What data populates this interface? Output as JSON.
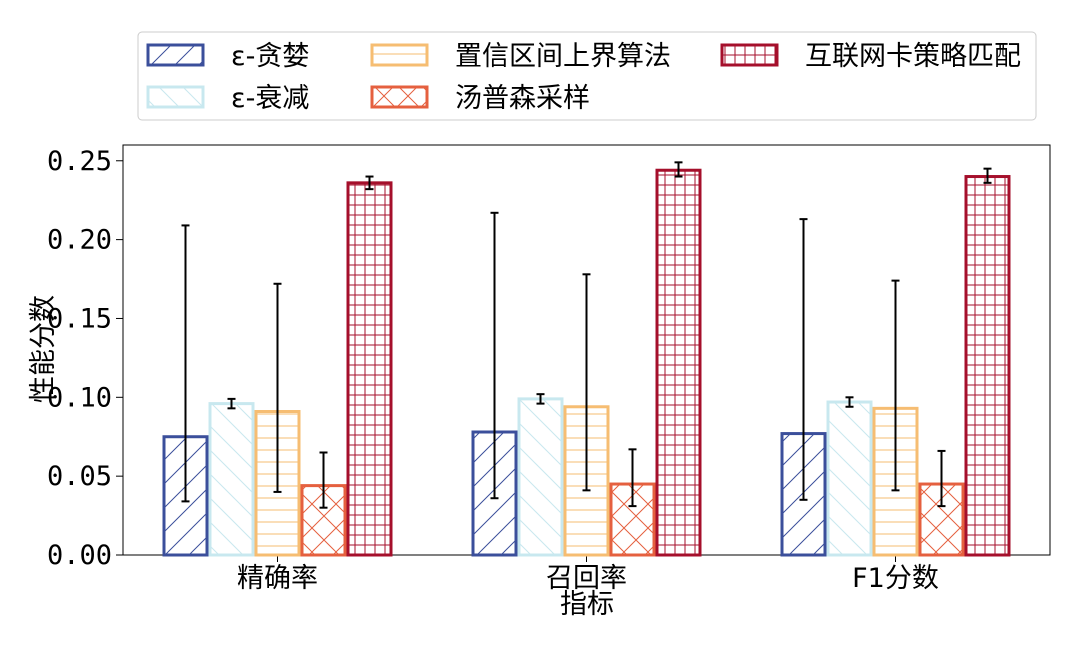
{
  "chart_data": {
    "type": "bar",
    "title": "",
    "xlabel": "指标",
    "ylabel": "性能分数",
    "categories": [
      "精确率",
      "召回率",
      "F1分数"
    ],
    "ylim": [
      0,
      0.26
    ],
    "yticks": [
      "0.00",
      "0.05",
      "0.10",
      "0.15",
      "0.20",
      "0.25"
    ],
    "grid": false,
    "legend_position": "top",
    "series": [
      {
        "name": "ε-贪婪",
        "color": "#3b4f9b",
        "hatch": "diagonal-up",
        "values": [
          0.075,
          0.078,
          0.077
        ],
        "err_low": [
          0.034,
          0.036,
          0.035
        ],
        "err_high": [
          0.209,
          0.217,
          0.213
        ]
      },
      {
        "name": "ε-衰减",
        "color": "#c8e8ef",
        "hatch": "diagonal-down",
        "values": [
          0.096,
          0.099,
          0.097
        ],
        "err_low": [
          0.093,
          0.096,
          0.094
        ],
        "err_high": [
          0.099,
          0.102,
          0.1
        ]
      },
      {
        "name": "置信区间上界算法",
        "color": "#f6bd72",
        "hatch": "horizontal",
        "values": [
          0.091,
          0.094,
          0.093
        ],
        "err_low": [
          0.04,
          0.041,
          0.041
        ],
        "err_high": [
          0.172,
          0.178,
          0.174
        ]
      },
      {
        "name": "汤普森采样",
        "color": "#e5603f",
        "hatch": "cross-diagonal",
        "values": [
          0.044,
          0.045,
          0.045
        ],
        "err_low": [
          0.03,
          0.031,
          0.031
        ],
        "err_high": [
          0.065,
          0.067,
          0.066
        ]
      },
      {
        "name": "互联网卡策略匹配",
        "color": "#a50f2b",
        "hatch": "grid",
        "values": [
          0.236,
          0.244,
          0.24
        ],
        "err_low": [
          0.232,
          0.24,
          0.236
        ],
        "err_high": [
          0.24,
          0.249,
          0.245
        ]
      }
    ]
  }
}
